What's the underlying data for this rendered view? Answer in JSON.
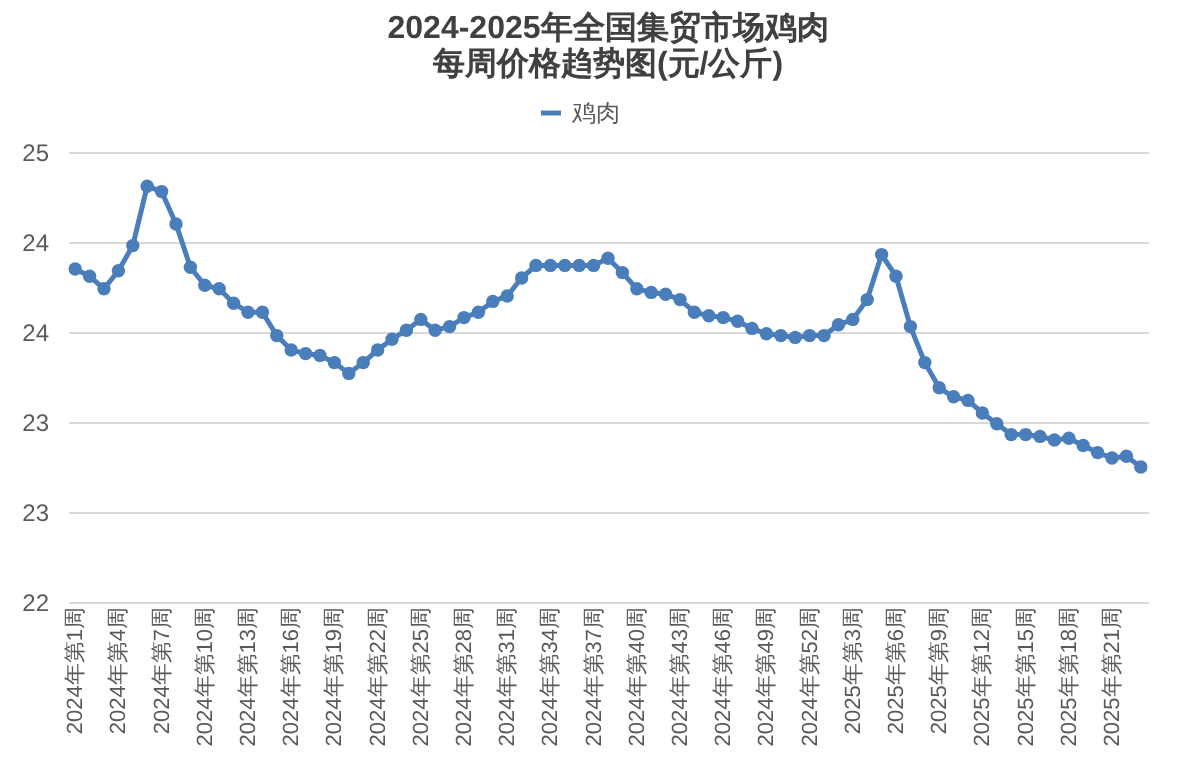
{
  "chart_data": {
    "type": "line",
    "title": "2024-2025年全国集贸市场鸡肉",
    "subtitle": "每周价格趋势图(元/公斤)",
    "categories": [
      "2024年第1周",
      null,
      null,
      "2024年第4周",
      null,
      null,
      "2024年第7周",
      null,
      null,
      "2024年第10周",
      null,
      null,
      "2024年第13周",
      null,
      null,
      "2024年第16周",
      null,
      null,
      "2024年第19周",
      null,
      null,
      "2024年第22周",
      null,
      null,
      "2024年第25周",
      null,
      null,
      "2024年第28周",
      null,
      null,
      "2024年第31周",
      null,
      null,
      "2024年第34周",
      null,
      null,
      "2024年第37周",
      null,
      null,
      "2024年第40周",
      null,
      null,
      "2024年第43周",
      null,
      null,
      "2024年第46周",
      null,
      null,
      "2024年第49周",
      null,
      null,
      "2024年第52周",
      null,
      null,
      "2025年第3周",
      null,
      null,
      "2025年第6周",
      null,
      null,
      "2025年第9周",
      null,
      null,
      "2025年第12周",
      null,
      null,
      "2025年第15周",
      null,
      null,
      "2025年第18周",
      null,
      null,
      "2025年第21周",
      null,
      null
    ],
    "series": [
      {
        "name": "鸡肉",
        "color": "#4a7ebb",
        "values": [
          24.35,
          24.31,
          24.24,
          24.34,
          24.48,
          24.81,
          24.78,
          24.6,
          24.36,
          24.26,
          24.24,
          24.16,
          24.11,
          24.11,
          23.98,
          23.9,
          23.88,
          23.87,
          23.83,
          23.77,
          23.83,
          23.9,
          23.96,
          24.01,
          24.07,
          24.01,
          24.03,
          24.08,
          24.11,
          24.17,
          24.2,
          24.3,
          24.37,
          24.37,
          24.37,
          24.37,
          24.37,
          24.41,
          24.33,
          24.24,
          24.22,
          24.21,
          24.18,
          24.11,
          24.09,
          24.08,
          24.06,
          24.02,
          23.99,
          23.98,
          23.97,
          23.98,
          23.98,
          24.04,
          24.07,
          24.18,
          24.43,
          24.31,
          24.03,
          23.83,
          23.69,
          23.64,
          23.62,
          23.55,
          23.49,
          23.43,
          23.43,
          23.42,
          23.4,
          23.41,
          23.37,
          23.33,
          23.3,
          23.31,
          23.25
        ]
      }
    ],
    "ylim": [
      22.5,
      25
    ],
    "yticks": [
      {
        "value": 22.5,
        "label": "22"
      },
      {
        "value": 23,
        "label": "23"
      },
      {
        "value": 23.5,
        "label": "23"
      },
      {
        "value": 24,
        "label": "24"
      },
      {
        "value": 24.5,
        "label": "24"
      },
      {
        "value": 25,
        "label": "25"
      }
    ],
    "grid": "y",
    "legend": "top",
    "marker": "circle",
    "line_style": "solid"
  }
}
